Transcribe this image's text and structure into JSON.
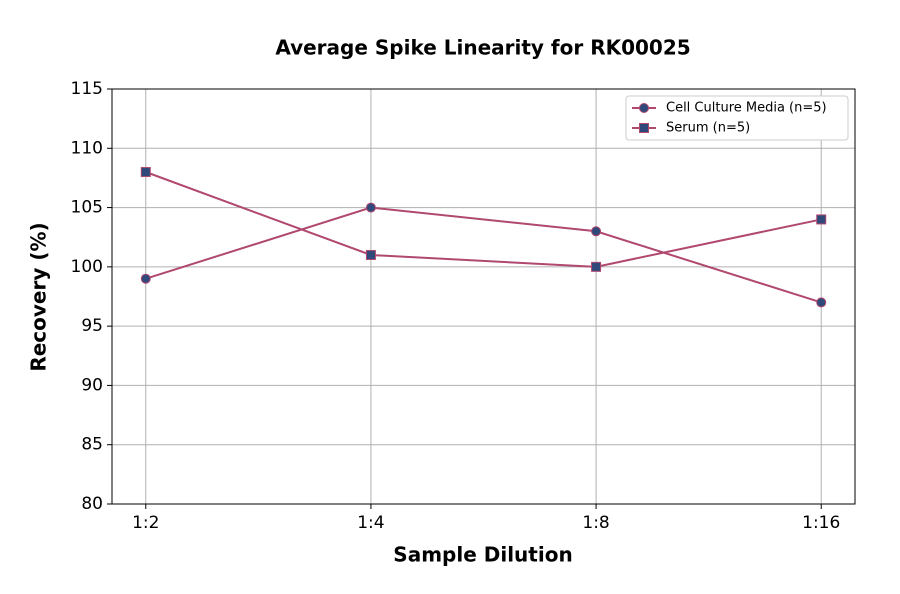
{
  "chart_data": {
    "type": "line",
    "title": "Average Spike Linearity for RK00025",
    "x_label": "Sample Dilution",
    "y_label": "Recovery (%)",
    "categories": [
      "1:2",
      "1:4",
      "1:8",
      "1:16"
    ],
    "series": [
      {
        "name": "Cell Culture Media (n=5)",
        "color": "#b0486f",
        "marker": "circle",
        "marker_color": "#2f4a7a",
        "values": [
          99,
          105,
          103,
          97
        ]
      },
      {
        "name": "Serum (n=5)",
        "color": "#b0486f",
        "marker": "square",
        "marker_color": "#2f4a7a",
        "values": [
          108,
          101,
          100,
          104
        ]
      }
    ],
    "ylim": [
      80,
      115
    ],
    "yticks": [
      80,
      85,
      90,
      95,
      100,
      105,
      110,
      115
    ],
    "grid": true,
    "legend": "upper right"
  }
}
